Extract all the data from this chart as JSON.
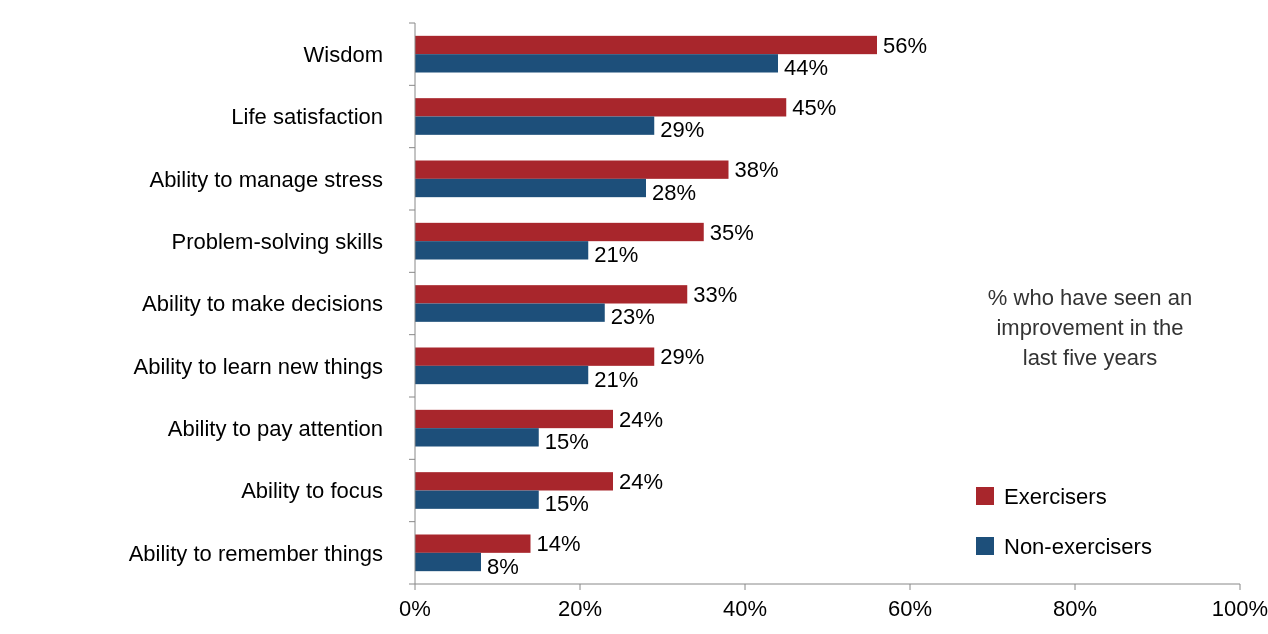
{
  "chart_data": {
    "type": "bar",
    "orientation": "horizontal",
    "categories": [
      "Wisdom",
      "Life satisfaction",
      "Ability to manage stress",
      "Problem-solving skills",
      "Ability to make decisions",
      "Ability to learn new things",
      "Ability to pay attention",
      "Ability to focus",
      "Ability to remember things"
    ],
    "series": [
      {
        "name": "Exercisers",
        "color": "#a8262c",
        "values": [
          56,
          45,
          38,
          35,
          33,
          29,
          24,
          24,
          14
        ],
        "value_labels": [
          "56%",
          "45%",
          "38%",
          "35%",
          "33%",
          "29%",
          "24%",
          "24%",
          "14%"
        ]
      },
      {
        "name": "Non-exercisers",
        "color": "#1d4f7a",
        "values": [
          44,
          29,
          28,
          21,
          23,
          21,
          15,
          15,
          8
        ],
        "value_labels": [
          "44%",
          "29%",
          "28%",
          "21%",
          "23%",
          "21%",
          "15%",
          "15%",
          "8%"
        ]
      }
    ],
    "xlim": [
      0,
      100
    ],
    "xticks": [
      {
        "value": 0,
        "label": "0%"
      },
      {
        "value": 20,
        "label": "20%"
      },
      {
        "value": 40,
        "label": "40%"
      },
      {
        "value": 60,
        "label": "60%"
      },
      {
        "value": 80,
        "label": "80%"
      },
      {
        "value": 100,
        "label": "100%"
      }
    ],
    "legend": "bottom right",
    "grid": false,
    "annotations": [
      "% who have seen an improvement in the last five years"
    ]
  }
}
